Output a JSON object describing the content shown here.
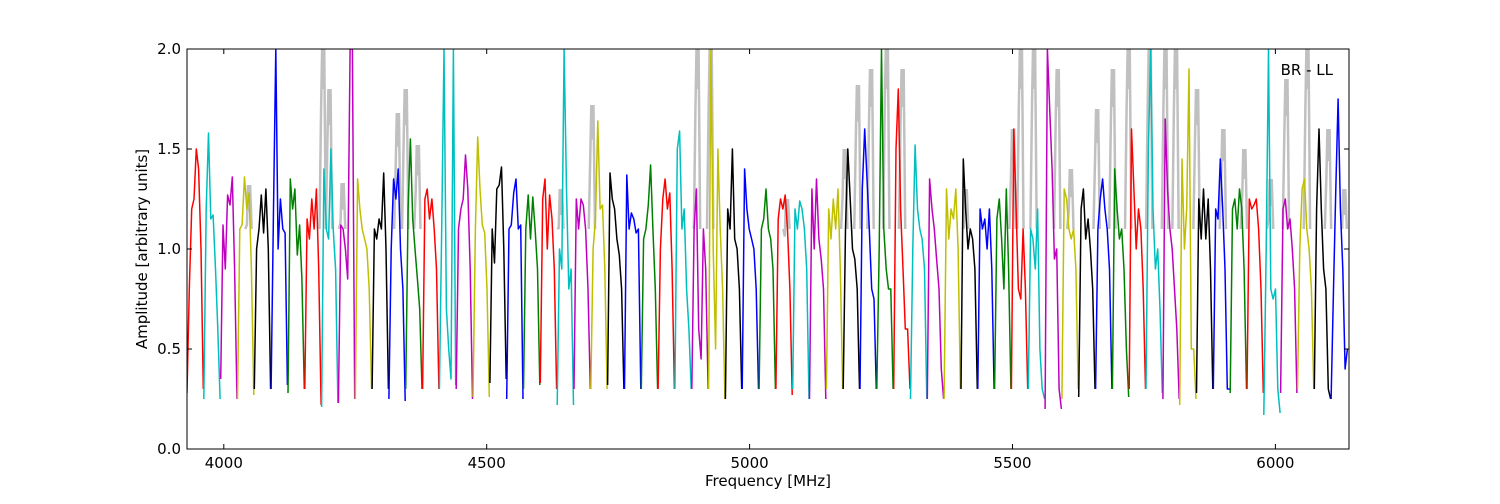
{
  "chart_data": {
    "type": "line",
    "title": "",
    "annotation": "BR - LL",
    "xlabel": "Frequency [MHz]",
    "ylabel": "Amplitude [arbitrary units]",
    "xlim": [
      3930,
      6140
    ],
    "ylim": [
      0,
      2
    ],
    "xticks": [
      4000,
      4500,
      5000,
      5500,
      6000
    ],
    "xtick_labels": [
      "4000",
      "4500",
      "5000",
      "5500",
      "6000"
    ],
    "yticks": [
      0,
      0.5,
      1,
      1.5,
      2
    ],
    "ytick_labels": [
      "0.0",
      "0.5",
      "1.0",
      "1.5",
      "2.0"
    ],
    "grid": false,
    "color_cycle": [
      "#ff0000",
      "#00bfbf",
      "#bf00bf",
      "#bfbf00",
      "#000000",
      "#0000ff",
      "#008000"
    ],
    "reference_color": "#c0c0c0",
    "segment_start": 3930,
    "segment_width_mhz": 31,
    "segment_step_mhz": 32,
    "segments": [
      [
        0.28,
        0.8,
        1.2,
        1.25,
        1.5,
        1.4,
        1.0,
        0.3
      ],
      [
        0.25,
        1.2,
        1.58,
        1.15,
        1.17,
        0.9,
        0.6,
        0.25
      ],
      [
        0.35,
        1.12,
        0.9,
        1.27,
        1.22,
        1.36,
        0.9,
        0.25
      ],
      [
        0.25,
        1.1,
        1.12,
        1.36,
        1.2,
        1.28,
        0.9,
        0.27
      ],
      [
        0.3,
        1.0,
        1.1,
        1.27,
        1.08,
        1.3,
        1.0,
        0.3
      ],
      [
        0.3,
        1.2,
        2.0,
        1.0,
        1.25,
        1.1,
        1.08,
        0.32
      ],
      [
        0.28,
        1.35,
        1.2,
        1.3,
        0.97,
        1.12,
        0.85,
        0.3
      ],
      [
        0.3,
        1.15,
        1.05,
        1.25,
        1.1,
        1.3,
        0.9,
        0.22
      ],
      [
        0.21,
        1.4,
        1.1,
        1.05,
        1.5,
        1.1,
        0.9,
        0.23
      ],
      [
        0.23,
        1.12,
        1.1,
        1.0,
        0.85,
        2.0,
        2.0,
        0.25
      ],
      [
        0.25,
        1.35,
        1.2,
        1.1,
        1.05,
        1.0,
        0.8,
        0.3
      ],
      [
        0.3,
        1.1,
        1.05,
        1.15,
        1.1,
        1.38,
        1.0,
        0.3
      ],
      [
        0.25,
        1.0,
        1.35,
        1.25,
        1.4,
        1.0,
        0.8,
        0.24
      ],
      [
        0.3,
        1.2,
        1.55,
        1.15,
        1.0,
        0.85,
        0.7,
        0.3
      ],
      [
        0.3,
        1.25,
        1.3,
        1.15,
        1.25,
        1.1,
        0.9,
        0.3
      ],
      [
        0.3,
        1.1,
        2.0,
        0.7,
        0.5,
        0.35,
        2.0,
        0.32
      ],
      [
        0.3,
        1.1,
        1.2,
        1.25,
        1.47,
        1.3,
        0.9,
        0.25
      ],
      [
        0.26,
        1.1,
        1.56,
        1.3,
        1.12,
        1.08,
        0.8,
        0.26
      ],
      [
        0.33,
        1.1,
        0.93,
        1.3,
        1.32,
        1.41,
        1.0,
        0.35
      ],
      [
        0.25,
        1.1,
        1.12,
        1.28,
        1.35,
        1.1,
        1.12,
        0.25
      ],
      [
        0.3,
        1.1,
        1.27,
        1.05,
        1.26,
        1.1,
        0.9,
        0.32
      ],
      [
        0.33,
        1.25,
        1.35,
        1.0,
        1.27,
        1.15,
        0.9,
        0.3
      ],
      [
        0.22,
        1.0,
        0.9,
        2.0,
        1.3,
        0.8,
        0.9,
        0.22
      ],
      [
        0.3,
        1.25,
        1.1,
        1.25,
        1.22,
        1.1,
        0.8,
        0.3
      ],
      [
        0.3,
        1.0,
        1.15,
        1.64,
        1.2,
        1.22,
        0.9,
        0.3
      ],
      [
        0.32,
        1.38,
        1.25,
        1.2,
        1.05,
        0.97,
        0.8,
        0.3
      ],
      [
        0.3,
        1.37,
        1.1,
        1.18,
        1.15,
        1.08,
        1.1,
        0.3
      ],
      [
        0.3,
        1.05,
        1.1,
        1.22,
        1.42,
        1.1,
        0.8,
        0.3
      ],
      [
        0.3,
        1.0,
        1.25,
        1.35,
        1.2,
        1.28,
        0.9,
        0.3
      ],
      [
        0.3,
        1.5,
        1.59,
        1.1,
        1.2,
        0.8,
        0.6,
        0.3
      ],
      [
        0.3,
        1.1,
        1.3,
        0.6,
        0.45,
        1.1,
        0.9,
        0.3
      ],
      [
        0.3,
        2.0,
        1.0,
        0.5,
        1.5,
        1.1,
        0.8,
        0.25
      ],
      [
        0.25,
        1.2,
        1.1,
        1.5,
        1.05,
        1.0,
        0.8,
        0.3
      ],
      [
        0.3,
        1.4,
        1.2,
        1.1,
        1.05,
        1.0,
        0.8,
        0.3
      ],
      [
        0.3,
        1.1,
        1.15,
        1.3,
        1.1,
        1.05,
        0.9,
        0.3
      ],
      [
        0.3,
        1.15,
        1.25,
        1.2,
        1.27,
        1.1,
        0.8,
        0.27
      ],
      [
        0.3,
        1.2,
        1.1,
        1.24,
        1.2,
        1.1,
        0.9,
        0.25
      ],
      [
        0.25,
        1.3,
        1.0,
        1.35,
        1.05,
        0.95,
        0.8,
        0.25
      ],
      [
        0.3,
        1.2,
        1.05,
        1.25,
        1.1,
        1.3,
        0.9,
        0.3
      ],
      [
        0.3,
        1.1,
        1.5,
        1.25,
        1.0,
        0.95,
        0.8,
        0.3
      ],
      [
        0.3,
        1.3,
        1.6,
        1.35,
        1.1,
        0.8,
        0.75,
        0.3
      ],
      [
        0.3,
        1.0,
        2.0,
        1.1,
        0.9,
        0.8,
        0.8,
        0.3
      ],
      [
        0.3,
        1.5,
        1.8,
        1.2,
        0.9,
        0.6,
        0.6,
        0.3
      ],
      [
        0.25,
        1.0,
        1.52,
        1.2,
        1.1,
        1.05,
        0.9,
        0.25
      ],
      [
        0.25,
        1.35,
        1.2,
        1.1,
        0.95,
        0.8,
        0.4,
        0.25
      ],
      [
        0.25,
        1.3,
        1.05,
        1.2,
        1.15,
        1.3,
        1.0,
        0.3
      ],
      [
        0.3,
        1.45,
        1.2,
        1.0,
        1.1,
        1.05,
        0.9,
        0.3
      ],
      [
        0.3,
        1.2,
        1.1,
        1.15,
        1.0,
        1.2,
        0.9,
        0.3
      ],
      [
        0.3,
        1.15,
        1.25,
        1.05,
        0.8,
        1.3,
        0.9,
        0.3
      ],
      [
        0.3,
        1.6,
        1.2,
        0.8,
        0.75,
        1.1,
        0.8,
        0.3
      ],
      [
        0.3,
        1.1,
        1.05,
        0.9,
        1.2,
        0.5,
        0.3,
        0.25
      ],
      [
        0.2,
        2.0,
        1.7,
        1.4,
        0.95,
        1.0,
        0.3,
        0.2
      ],
      [
        0.25,
        1.3,
        1.25,
        1.1,
        1.05,
        1.1,
        0.9,
        0.3
      ],
      [
        0.26,
        1.2,
        1.3,
        1.05,
        1.15,
        1.0,
        0.8,
        0.3
      ],
      [
        0.3,
        1.1,
        1.25,
        1.35,
        1.2,
        1.1,
        0.9,
        0.3
      ],
      [
        0.3,
        1.4,
        1.2,
        1.05,
        1.1,
        0.9,
        0.5,
        0.26
      ],
      [
        0.3,
        1.6,
        1.3,
        1.0,
        1.2,
        1.1,
        0.8,
        0.3
      ],
      [
        0.3,
        1.5,
        2.0,
        1.2,
        0.9,
        1.0,
        0.7,
        0.28
      ],
      [
        0.25,
        1.65,
        1.3,
        1.1,
        1.0,
        0.8,
        0.6,
        0.25
      ],
      [
        0.22,
        1.45,
        1.0,
        1.2,
        1.9,
        0.5,
        0.5,
        0.25
      ],
      [
        0.28,
        1.25,
        1.05,
        1.3,
        1.05,
        1.25,
        0.9,
        0.3
      ],
      [
        0.3,
        1.2,
        1.15,
        1.45,
        1.2,
        0.9,
        0.3,
        0.3
      ],
      [
        0.28,
        1.2,
        1.25,
        1.1,
        1.3,
        1.2,
        0.9,
        0.3
      ],
      [
        0.3,
        1.25,
        1.2,
        1.22,
        1.25,
        1.1,
        0.8,
        0.28
      ],
      [
        0.17,
        1.0,
        2.0,
        0.8,
        0.75,
        0.8,
        0.3,
        0.18
      ],
      [
        0.28,
        1.2,
        1.25,
        1.1,
        1.15,
        1.0,
        0.8,
        0.28
      ],
      [
        0.3,
        1.0,
        1.3,
        1.35,
        1.1,
        1.0,
        0.8,
        0.3
      ],
      [
        0.3,
        1.2,
        1.6,
        1.2,
        0.9,
        0.8,
        0.3,
        0.25
      ],
      [
        0.25,
        0.8,
        1.3,
        1.75,
        1.2,
        0.9,
        0.4,
        0.5
      ]
    ],
    "reference_peaks": [
      [
        4047,
        1.32
      ],
      [
        4188,
        2.0
      ],
      [
        4200,
        1.8
      ],
      [
        4225,
        1.33
      ],
      [
        4330,
        1.68
      ],
      [
        4345,
        1.8
      ],
      [
        4368,
        1.52
      ],
      [
        4640,
        1.3
      ],
      [
        4700,
        1.72
      ],
      [
        4900,
        2.0
      ],
      [
        4925,
        2.0
      ],
      [
        5070,
        1.25
      ],
      [
        5180,
        1.5
      ],
      [
        5205,
        1.82
      ],
      [
        5230,
        1.9
      ],
      [
        5260,
        2.0
      ],
      [
        5290,
        1.9
      ],
      [
        5410,
        1.3
      ],
      [
        5500,
        1.6
      ],
      [
        5515,
        2.0
      ],
      [
        5540,
        2.0
      ],
      [
        5585,
        1.9
      ],
      [
        5610,
        1.4
      ],
      [
        5660,
        1.7
      ],
      [
        5690,
        1.9
      ],
      [
        5720,
        2.0
      ],
      [
        5760,
        2.0
      ],
      [
        5790,
        2.0
      ],
      [
        5810,
        2.0
      ],
      [
        5850,
        1.8
      ],
      [
        5900,
        1.6
      ],
      [
        5940,
        1.5
      ],
      [
        5990,
        1.35
      ],
      [
        6020,
        1.85
      ],
      [
        6060,
        2.0
      ],
      [
        6100,
        1.6
      ],
      [
        6130,
        1.3
      ]
    ]
  }
}
